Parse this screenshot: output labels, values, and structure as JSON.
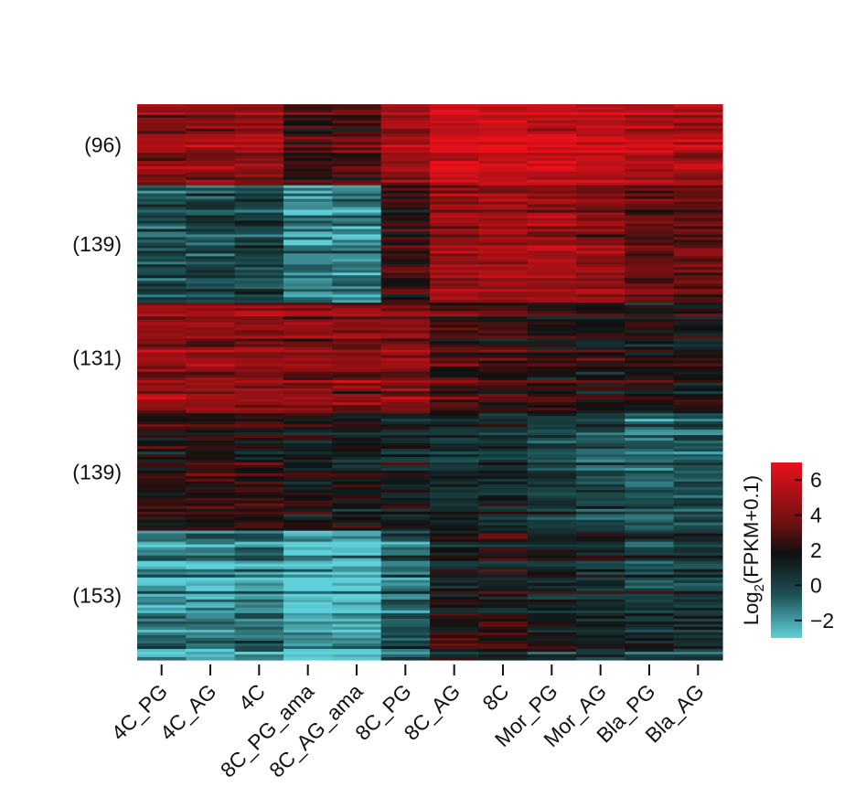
{
  "chart_data": {
    "type": "heatmap",
    "title": "",
    "columns": [
      "4C_PG",
      "4C_AG",
      "4C",
      "8C_PG_ama",
      "8C_AG_ama",
      "8C_PG",
      "8C_AG",
      "8C",
      "Mor_PG",
      "Mor_AG",
      "Bla_PG",
      "Bla_AG"
    ],
    "clusters": [
      {
        "label": "(96)",
        "gene_count": 96,
        "mean_values": [
          4.3,
          4.4,
          4.2,
          2.6,
          3.0,
          4.8,
          6.2,
          6.3,
          6.0,
          5.6,
          5.4,
          5.3
        ]
      },
      {
        "label": "(139)",
        "gene_count": 139,
        "mean_values": [
          -0.4,
          -0.2,
          0.0,
          -1.6,
          -1.5,
          2.5,
          4.6,
          4.9,
          4.8,
          4.3,
          3.5,
          3.3
        ]
      },
      {
        "label": "(131)",
        "gene_count": 131,
        "mean_values": [
          4.6,
          4.7,
          4.6,
          4.3,
          4.2,
          4.3,
          2.8,
          2.7,
          2.3,
          2.0,
          1.9,
          1.8
        ]
      },
      {
        "label": "(139)",
        "gene_count": 139,
        "mean_values": [
          2.1,
          2.4,
          2.2,
          1.6,
          1.7,
          1.3,
          1.0,
          0.9,
          0.2,
          -0.2,
          -0.6,
          -0.5
        ]
      },
      {
        "label": "(153)",
        "gene_count": 153,
        "mean_values": [
          -1.6,
          -1.7,
          -1.3,
          -2.5,
          -2.7,
          -0.8,
          1.6,
          1.9,
          1.2,
          0.8,
          0.4,
          0.6
        ]
      }
    ],
    "colorbar": {
      "label_prefix": "Log",
      "label_subscript": "2",
      "label_suffix": "(FPKM+0.1)",
      "range": [
        -3,
        7
      ],
      "ticks": [
        "6",
        "4",
        "2",
        "0",
        "−2"
      ],
      "tick_values": [
        6,
        4,
        2,
        0,
        -2
      ],
      "colors": {
        "low": "#5fd0da",
        "mid_low": "#1c4f52",
        "mid": "#101010",
        "mid_high": "#6e1111",
        "high": "#e8111b"
      }
    }
  }
}
